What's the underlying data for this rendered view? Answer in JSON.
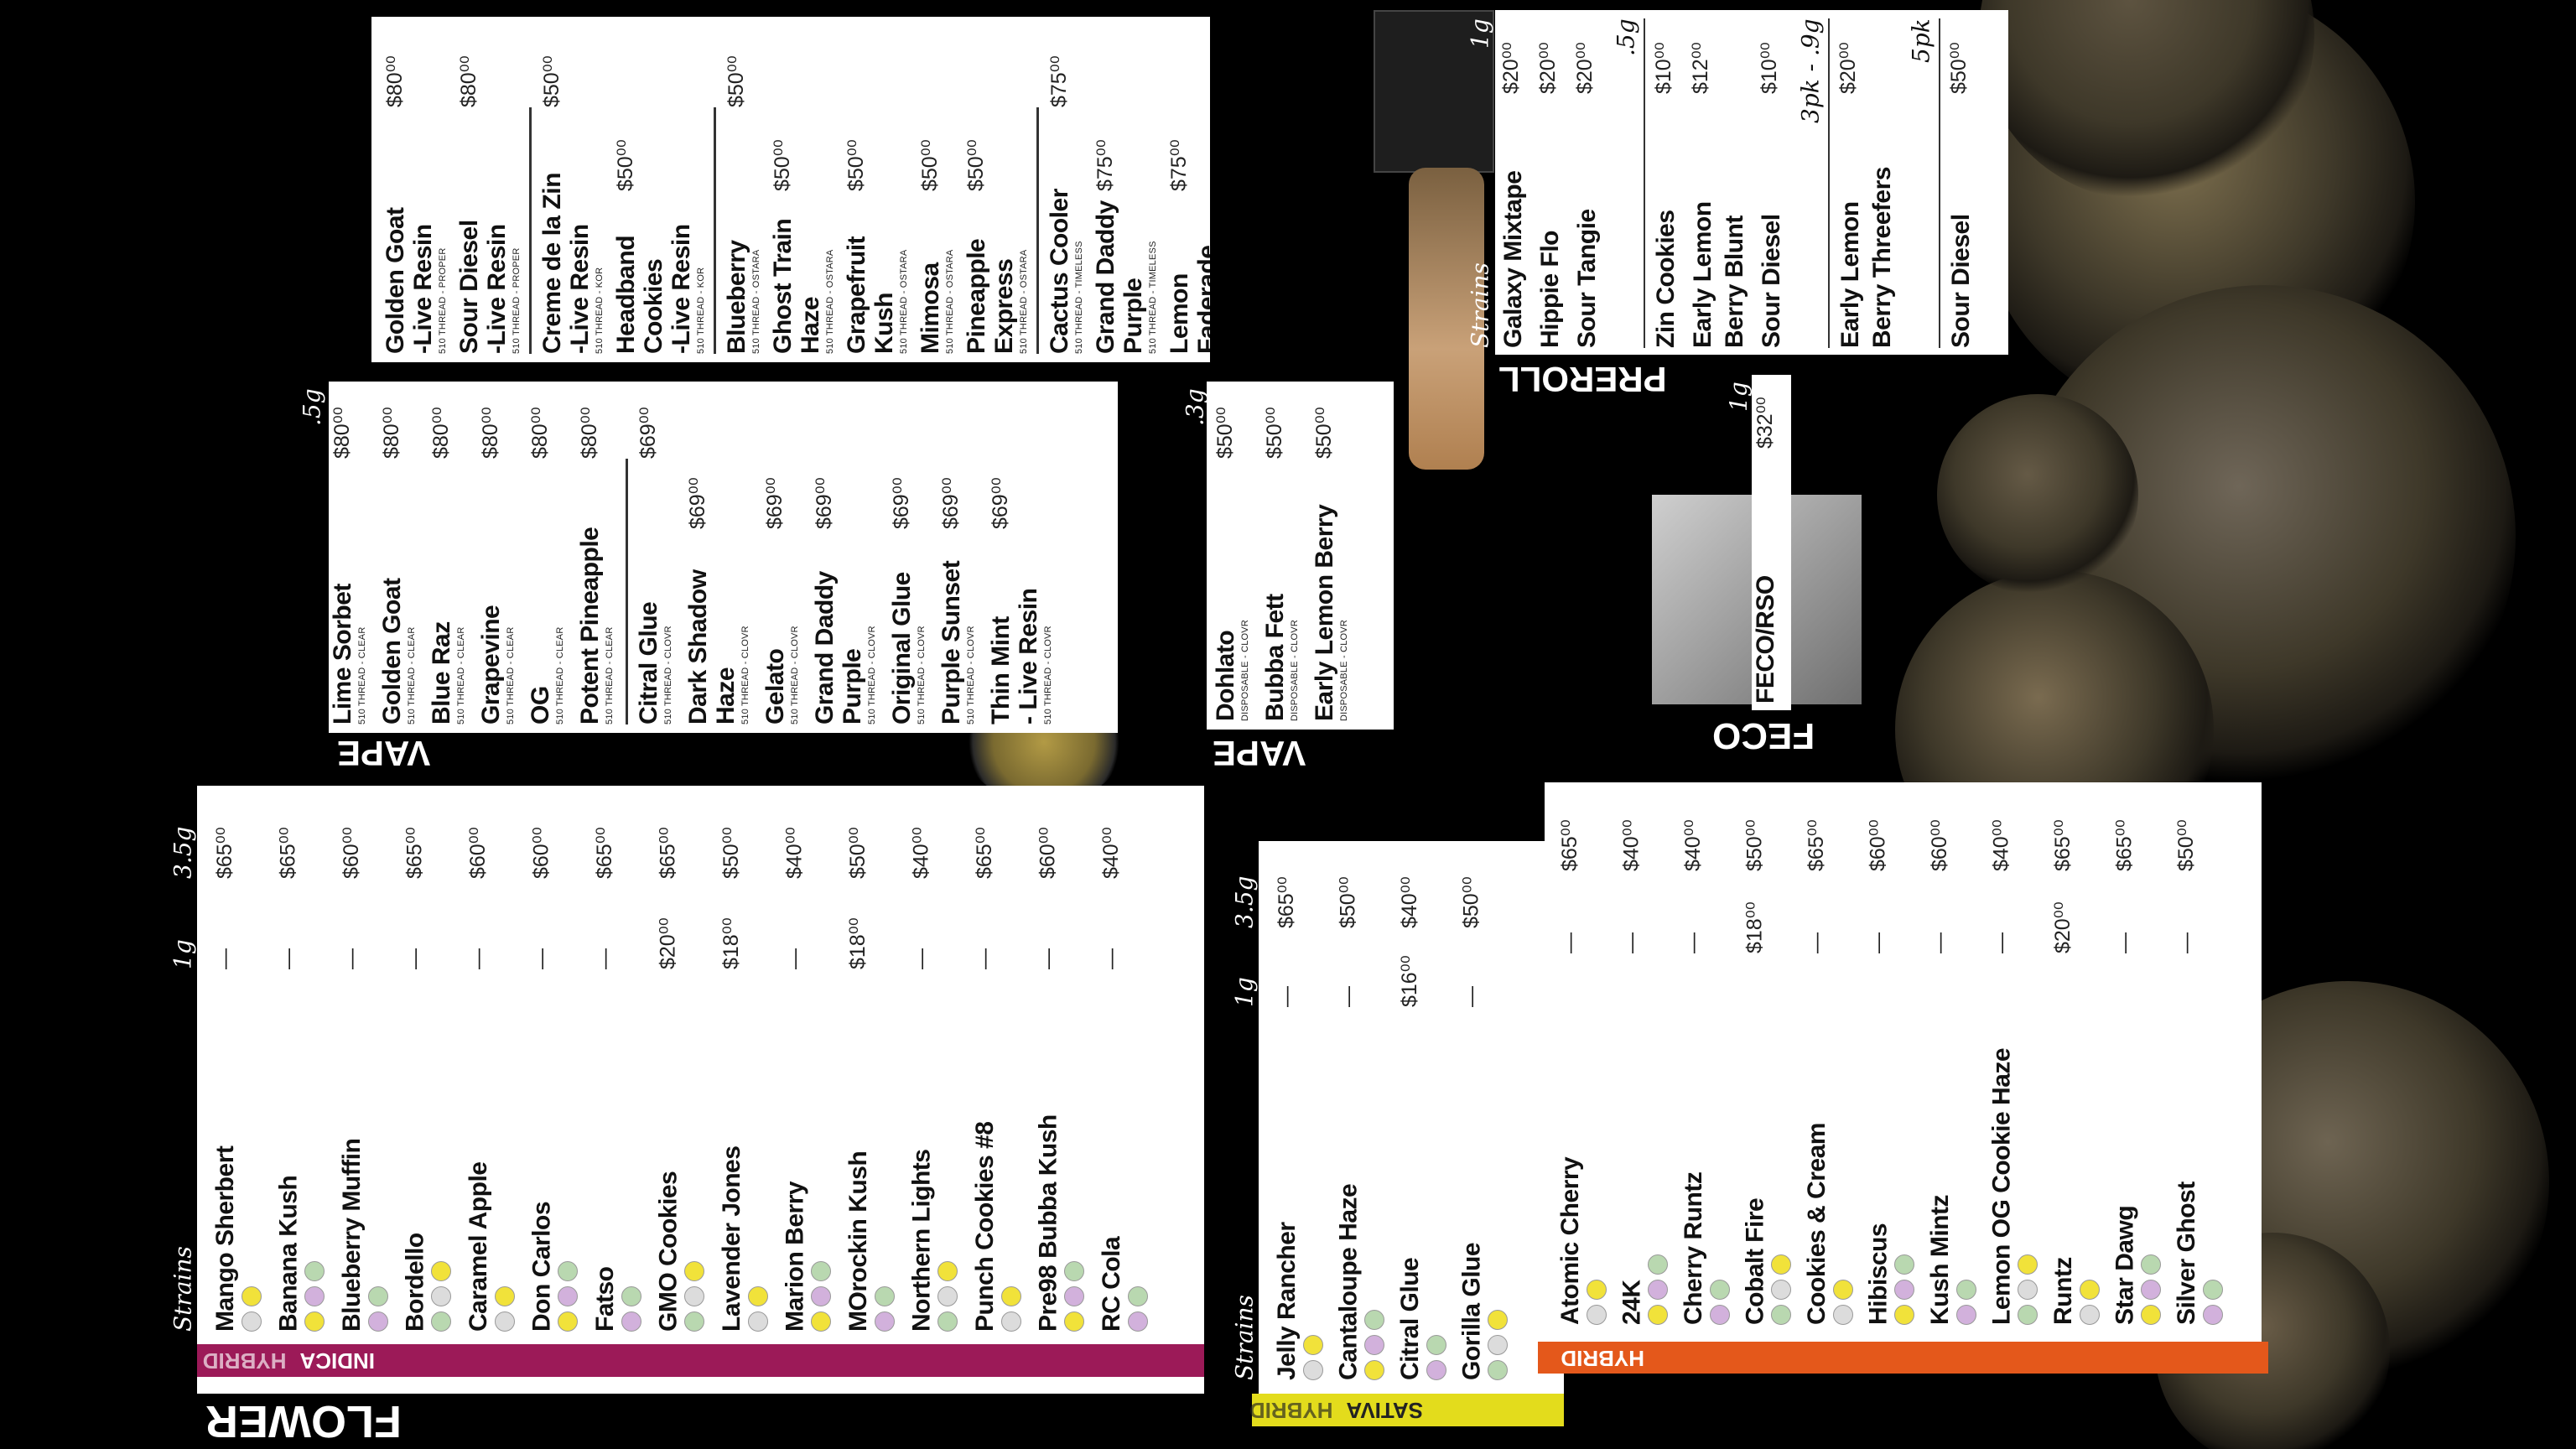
{
  "flower": {
    "title": "FLOWER",
    "sections": [
      {
        "tags": [
          "INDICA",
          "HYBRID"
        ],
        "strains_label": "Strains",
        "columns": [
          "1g",
          "3.5g"
        ],
        "rows": [
          [
            "Mango Sherbert",
            "—",
            "$65⁰⁰"
          ],
          [
            "Banana Kush",
            "—",
            "$65⁰⁰"
          ],
          [
            "Blueberry Muffin",
            "—",
            "$60⁰⁰"
          ],
          [
            "Bordello",
            "—",
            "$65⁰⁰"
          ],
          [
            "Caramel Apple",
            "—",
            "$60⁰⁰"
          ],
          [
            "Don Carlos",
            "—",
            "$60⁰⁰"
          ],
          [
            "Fatso",
            "—",
            "$65⁰⁰"
          ],
          [
            "GMO Cookies",
            "$20⁰⁰",
            "$65⁰⁰"
          ],
          [
            "Lavender Jones",
            "$18⁰⁰",
            "$50⁰⁰"
          ],
          [
            "Marion Berry",
            "—",
            "$40⁰⁰"
          ],
          [
            "MOrockin Kush",
            "$18⁰⁰",
            "$50⁰⁰"
          ],
          [
            "Northern Lights",
            "—",
            "$40⁰⁰"
          ],
          [
            "Punch Cookies #8",
            "—",
            "$65⁰⁰"
          ],
          [
            "Pre98 Bubba Kush",
            "—",
            "$60⁰⁰"
          ],
          [
            "RC Cola",
            "—",
            "$40⁰⁰"
          ]
        ]
      },
      {
        "tags": [
          "SATIVA",
          "HYBRID"
        ],
        "strains_label": "Strains",
        "columns": [
          "1g",
          "3.5g"
        ],
        "rows": [
          [
            "Jelly Rancher",
            "—",
            "$65⁰⁰"
          ],
          [
            "Cantaloupe Haze",
            "—",
            "$50⁰⁰"
          ],
          [
            "Citral Glue",
            "$16⁰⁰",
            "$40⁰⁰"
          ],
          [
            "Gorilla Glue",
            "—",
            "$50⁰⁰"
          ]
        ]
      },
      {
        "tags": [
          "HYBRID"
        ],
        "rows": [
          [
            "Atomic Cherry",
            "—",
            "$65⁰⁰"
          ],
          [
            "24K",
            "—",
            "$40⁰⁰"
          ],
          [
            "Cherry Runtz",
            "—",
            "$40⁰⁰"
          ],
          [
            "Cobalt Fire",
            "$18⁰⁰",
            "$50⁰⁰"
          ],
          [
            "Cookies & Cream",
            "—",
            "$65⁰⁰"
          ],
          [
            "Hibiscus",
            "—",
            "$60⁰⁰"
          ],
          [
            "Kush Mintz",
            "—",
            "$60⁰⁰"
          ],
          [
            "Lemon OG Cookie Haze",
            "—",
            "$40⁰⁰"
          ],
          [
            "Runtz",
            "$20⁰⁰",
            "$65⁰⁰"
          ],
          [
            "Star Dawg",
            "—",
            "$65⁰⁰"
          ],
          [
            "Silver Ghost",
            "—",
            "$50⁰⁰"
          ]
        ]
      }
    ]
  },
  "vape": [
    {
      "title": "VAPE",
      "size": ".5g",
      "groups": [
        [
          [
            "Lime Sorbet",
            "510 THREAD - CLEAR",
            "$80⁰⁰"
          ],
          [
            "Golden Goat",
            "510 THREAD - CLEAR",
            "$80⁰⁰"
          ],
          [
            "Blue Raz",
            "510 THREAD - CLEAR",
            "$80⁰⁰"
          ],
          [
            "Grapevine",
            "510 THREAD - CLEAR",
            "$80⁰⁰"
          ],
          [
            "OG",
            "510 THREAD - CLEAR",
            "$80⁰⁰"
          ],
          [
            "Potent Pineapple",
            "510 THREAD - CLEAR",
            "$80⁰⁰"
          ]
        ],
        [
          [
            "Citral Glue",
            "510 THREAD - CLOVR",
            "$69⁰⁰"
          ],
          [
            "Dark Shadow Haze",
            "510 THREAD - CLOVR",
            "$69⁰⁰"
          ],
          [
            "Gelato",
            "510 THREAD - CLOVR",
            "$69⁰⁰"
          ],
          [
            "Grand Daddy\nPurple",
            "510 THREAD - CLOVR",
            "$69⁰⁰"
          ],
          [
            "Original Glue",
            "510 THREAD - CLOVR",
            "$69⁰⁰"
          ],
          [
            "Purple Sunset",
            "510 THREAD - CLOVR",
            "$69⁰⁰"
          ],
          [
            "Thin Mint\n- Live Resin",
            "510 THREAD - CLOVR",
            "$69⁰⁰"
          ]
        ]
      ]
    },
    {
      "title": "VAPE",
      "size": ".3g",
      "groups": [
        [
          [
            "Dohlato",
            "DISPOSABLE - CLOVR",
            "$50⁰⁰"
          ],
          [
            "Bubba Fett",
            "DISPOSABLE - CLOVR",
            "$50⁰⁰"
          ],
          [
            "Early Lemon Berry",
            "DISPOSABLE - CLOVR",
            "$50⁰⁰"
          ]
        ]
      ]
    },
    {
      "groups": [
        [
          [
            "Golden Goat\n-Live Resin",
            "510 THREAD - PROPER",
            "$80⁰⁰"
          ],
          [
            "Sour Diesel\n-Live Resin",
            "510 THREAD - PROPER",
            "$80⁰⁰"
          ]
        ],
        [
          [
            "Creme de la Zin\n-Live Resin",
            "510 THREAD - KOR",
            "$50⁰⁰"
          ],
          [
            "Headband Cookies\n-Live Resin",
            "510 THREAD - KOR",
            "$50⁰⁰"
          ]
        ],
        [
          [
            "Blueberry",
            "510 THREAD - OSTARA",
            "$50⁰⁰"
          ],
          [
            "Ghost Train Haze",
            "510 THREAD - OSTARA",
            "$50⁰⁰"
          ],
          [
            "Grapefruit Kush",
            "510 THREAD - OSTARA",
            "$50⁰⁰"
          ],
          [
            "Mimosa",
            "510 THREAD - OSTARA",
            "$50⁰⁰"
          ],
          [
            "Pineapple Express",
            "510 THREAD - OSTARA",
            "$50⁰⁰"
          ]
        ],
        [
          [
            "Cactus Cooler",
            "510 THREAD - TIMELESS",
            "$75⁰⁰"
          ],
          [
            "Grand Daddy\nPurple",
            "510 THREAD - TIMELESS",
            "$75⁰⁰"
          ],
          [
            "Lemon Faderade",
            "510 THREAD - TIMELESS",
            "$75⁰⁰"
          ]
        ]
      ]
    }
  ],
  "preroll": {
    "title": "PREROLL",
    "strains_label": "Strains",
    "groups": [
      {
        "size": "1g",
        "rows": [
          [
            "Galaxy Mixtape",
            "$20⁰⁰"
          ],
          [
            "Hippie Flo",
            "$20⁰⁰"
          ],
          [
            "Sour Tangie",
            "$20⁰⁰"
          ]
        ]
      },
      {
        "size": ".5g",
        "rows": [
          [
            "Zin Cookies",
            "$10⁰⁰"
          ],
          [
            "Early Lemon\nBerry Blunt",
            "$12⁰⁰"
          ],
          [
            "Sour Diesel",
            "$10⁰⁰"
          ]
        ]
      },
      {
        "size": "3pk - .9g",
        "rows": [
          [
            "Early Lemon\nBerry Threefers",
            "$20⁰⁰"
          ]
        ]
      },
      {
        "size": "5pk",
        "rows": [
          [
            "Sour Diesel",
            "$50⁰⁰"
          ]
        ]
      }
    ]
  },
  "feco": {
    "title": "FECO",
    "size": "1g",
    "name": "FECO/RSO",
    "price": "$32⁰⁰"
  }
}
